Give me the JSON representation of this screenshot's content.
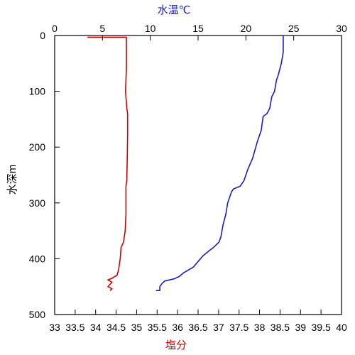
{
  "chart_data": {
    "type": "line",
    "y_axis": {
      "label": "水深m",
      "ticks": [
        "0",
        "100",
        "200",
        "300",
        "400",
        "500"
      ],
      "ylim": [
        0,
        500
      ],
      "inverted": true
    },
    "x_top": {
      "label": "水温℃",
      "ticks": [
        "0",
        "5",
        "10",
        "15",
        "20",
        "25",
        "30"
      ],
      "xlim": [
        0,
        30
      ],
      "color": "#1a1acc"
    },
    "x_bottom": {
      "label": "塩分",
      "ticks": [
        "33",
        "33.5",
        "34",
        "34.5",
        "35",
        "35.5",
        "36",
        "36.5",
        "37",
        "37.5",
        "38",
        "38.5",
        "39",
        "39.5",
        "40"
      ],
      "xlim": [
        33,
        40
      ],
      "color": "#cc0000"
    },
    "grid": false,
    "series": [
      {
        "axis": "x_bottom",
        "color": "#cc0000",
        "points": [
          [
            33.8,
            3
          ],
          [
            34.75,
            3
          ],
          [
            34.75,
            20
          ],
          [
            34.75,
            60
          ],
          [
            34.73,
            100
          ],
          [
            34.76,
            130
          ],
          [
            34.78,
            140
          ],
          [
            34.78,
            180
          ],
          [
            34.77,
            220
          ],
          [
            34.76,
            260
          ],
          [
            34.74,
            270
          ],
          [
            34.74,
            320
          ],
          [
            34.72,
            350
          ],
          [
            34.7,
            360
          ],
          [
            34.68,
            370
          ],
          [
            34.62,
            380
          ],
          [
            34.6,
            400
          ],
          [
            34.56,
            420
          ],
          [
            34.52,
            430
          ],
          [
            34.46,
            432
          ],
          [
            34.4,
            435
          ],
          [
            34.3,
            438
          ],
          [
            34.4,
            442
          ],
          [
            34.35,
            446
          ],
          [
            34.3,
            450
          ],
          [
            34.4,
            454
          ],
          [
            34.35,
            457
          ]
        ]
      },
      {
        "axis": "x_top",
        "color": "#1a1acc",
        "points": [
          [
            23.9,
            0
          ],
          [
            23.9,
            30
          ],
          [
            23.7,
            50
          ],
          [
            23.4,
            70
          ],
          [
            23.2,
            80
          ],
          [
            23.0,
            100
          ],
          [
            22.7,
            110
          ],
          [
            22.5,
            130
          ],
          [
            22.2,
            140
          ],
          [
            21.8,
            145
          ],
          [
            21.6,
            170
          ],
          [
            21.2,
            190
          ],
          [
            20.7,
            220
          ],
          [
            20.2,
            240
          ],
          [
            19.8,
            260
          ],
          [
            19.4,
            270
          ],
          [
            18.7,
            275
          ],
          [
            18.5,
            280
          ],
          [
            18.1,
            300
          ],
          [
            17.9,
            320
          ],
          [
            17.6,
            340
          ],
          [
            17.4,
            360
          ],
          [
            17.2,
            370
          ],
          [
            16.6,
            380
          ],
          [
            16.2,
            385
          ],
          [
            15.5,
            395
          ],
          [
            15.0,
            405
          ],
          [
            14.5,
            415
          ],
          [
            13.5,
            425
          ],
          [
            13.0,
            432
          ],
          [
            12.5,
            436
          ],
          [
            11.5,
            440
          ],
          [
            11.2,
            445
          ],
          [
            11.0,
            450
          ],
          [
            11.0,
            457
          ],
          [
            10.6,
            457
          ]
        ]
      }
    ]
  }
}
